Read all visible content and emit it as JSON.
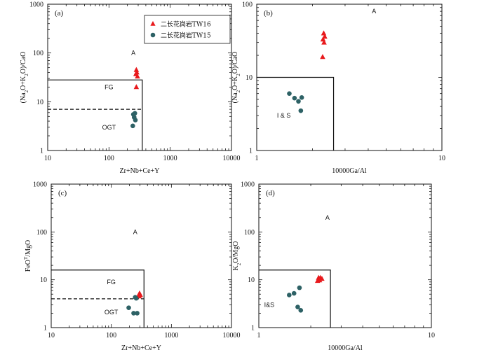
{
  "colors": {
    "tw16": "#e8191c",
    "tw15": "#2d6165",
    "axis": "#111111"
  },
  "legend": [
    {
      "name": "二长花岗岩TW16",
      "marker": "triangle"
    },
    {
      "name": "二长花岗岩TW15",
      "marker": "circle"
    }
  ],
  "chart_data": [
    {
      "type": "scatter",
      "panel": "(a)",
      "xlabel": "Zr+Nb+Ce+Y",
      "ylabel": "(Na2O+K2O)/CaO",
      "xscale": "log",
      "yscale": "log",
      "xlim": [
        10,
        10000
      ],
      "ylim": [
        1,
        1000
      ],
      "xticks": [
        10,
        100,
        1000,
        10000
      ],
      "xtick_labels": [
        "10",
        "100",
        "1000",
        "10000"
      ],
      "yticks": [
        1,
        10,
        100,
        1000
      ],
      "ytick_labels": [
        "1",
        "10",
        "100",
        "1000"
      ],
      "boundaries": [
        {
          "style": "solid",
          "points": [
            [
              10,
              28
            ],
            [
              350,
              28
            ],
            [
              350,
              1
            ]
          ]
        },
        {
          "style": "dashed",
          "points": [
            [
              10,
              7
            ],
            [
              350,
              7
            ]
          ]
        }
      ],
      "fields": [
        {
          "label": "A",
          "x": 250,
          "y": 100
        },
        {
          "label": "FG",
          "x": 100,
          "y": 20
        },
        {
          "label": "OGT",
          "x": 100,
          "y": 3
        }
      ],
      "series": [
        {
          "name": "二长花岗岩TW16",
          "marker": "triangle",
          "points": [
            [
              280,
              45
            ],
            [
              285,
              40
            ],
            [
              275,
              37
            ],
            [
              292,
              33
            ],
            [
              280,
              20
            ]
          ]
        },
        {
          "name": "二长花岗岩TW15",
          "marker": "circle",
          "points": [
            [
              250,
              5.5
            ],
            [
              265,
              5.8
            ],
            [
              258,
              4.8
            ],
            [
              270,
              4.2
            ],
            [
              245,
              3.2
            ]
          ]
        }
      ]
    },
    {
      "type": "scatter",
      "panel": "(b)",
      "xlabel": "10000Ga/Al",
      "ylabel": "(Na2O+K2O)/CaO",
      "xscale": "log",
      "yscale": "log",
      "xlim": [
        1,
        10
      ],
      "ylim": [
        1,
        100
      ],
      "xticks": [
        1,
        10
      ],
      "xtick_labels": [
        "1",
        "10"
      ],
      "yticks": [
        1,
        10,
        100
      ],
      "ytick_labels": [
        "1",
        "10",
        "100"
      ],
      "boundaries": [
        {
          "style": "solid",
          "points": [
            [
              1,
              10
            ],
            [
              2.6,
              10
            ],
            [
              2.6,
              1
            ]
          ]
        }
      ],
      "fields": [
        {
          "label": "A",
          "x": 4.3,
          "y": 80
        },
        {
          "label": "I & S",
          "x": 1.4,
          "y": 3
        }
      ],
      "series": [
        {
          "name": "二长花岗岩TW16",
          "marker": "triangle",
          "points": [
            [
              2.3,
              40
            ],
            [
              2.33,
              36
            ],
            [
              2.28,
              33
            ],
            [
              2.31,
              30
            ],
            [
              2.27,
              19
            ]
          ]
        },
        {
          "name": "二长花岗岩TW15",
          "marker": "circle",
          "points": [
            [
              1.5,
              6
            ],
            [
              1.6,
              5.2
            ],
            [
              1.68,
              4.7
            ],
            [
              1.75,
              5.3
            ],
            [
              1.73,
              3.5
            ]
          ]
        }
      ]
    },
    {
      "type": "scatter",
      "panel": "(c)",
      "xlabel": "Zr+Nb+Ce+Y",
      "ylabel": "FeOT/MgO",
      "xscale": "log",
      "yscale": "log",
      "xlim": [
        10,
        10000
      ],
      "ylim": [
        1,
        1000
      ],
      "xticks": [
        10,
        100,
        1000,
        10000
      ],
      "xtick_labels": [
        "10",
        "100",
        "1000",
        "10000"
      ],
      "yticks": [
        1,
        10,
        100,
        1000
      ],
      "ytick_labels": [
        "1",
        "10",
        "100",
        "1000"
      ],
      "boundaries": [
        {
          "style": "solid",
          "points": [
            [
              10,
              16
            ],
            [
              350,
              16
            ],
            [
              350,
              1
            ]
          ]
        },
        {
          "style": "dashed",
          "points": [
            [
              10,
              4
            ],
            [
              350,
              4
            ]
          ]
        }
      ],
      "fields": [
        {
          "label": "A",
          "x": 250,
          "y": 100
        },
        {
          "label": "FG",
          "x": 100,
          "y": 9
        },
        {
          "label": "OGT",
          "x": 100,
          "y": 2.1
        }
      ],
      "series": [
        {
          "name": "二长花岗岩TW16",
          "marker": "triangle",
          "points": [
            [
              295,
              5.2
            ],
            [
              300,
              4.9
            ],
            [
              285,
              4.7
            ],
            [
              305,
              4.8
            ],
            [
              290,
              4.5
            ]
          ]
        },
        {
          "name": "二长花岗岩TW15",
          "marker": "circle",
          "points": [
            [
              250,
              4.3
            ],
            [
              260,
              4.1
            ],
            [
              195,
              2.6
            ],
            [
              235,
              2.0
            ],
            [
              270,
              2.0
            ]
          ]
        }
      ]
    },
    {
      "type": "scatter",
      "panel": "(d)",
      "xlabel": "10000Ga/Al",
      "ylabel": "K2O/MgO",
      "xscale": "log",
      "yscale": "log",
      "xlim": [
        1,
        10
      ],
      "ylim": [
        1,
        1000
      ],
      "xticks": [
        1,
        10
      ],
      "xtick_labels": [
        "1",
        "10"
      ],
      "yticks": [
        1,
        10,
        100,
        1000
      ],
      "ytick_labels": [
        "1",
        "10",
        "100",
        "1000"
      ],
      "boundaries": [
        {
          "style": "solid",
          "points": [
            [
              1,
              16
            ],
            [
              2.6,
              16
            ],
            [
              2.6,
              1
            ]
          ]
        }
      ],
      "fields": [
        {
          "label": "A",
          "x": 2.5,
          "y": 200
        },
        {
          "label": "I&S",
          "x": 1.15,
          "y": 3
        }
      ],
      "series": [
        {
          "name": "二长花岗岩TW16",
          "marker": "triangle",
          "points": [
            [
              2.22,
              11
            ],
            [
              2.27,
              11
            ],
            [
              2.32,
              10.5
            ],
            [
              2.25,
              9.8
            ],
            [
              2.19,
              9.5
            ]
          ]
        },
        {
          "name": "二长花岗岩TW15",
          "marker": "circle",
          "points": [
            [
              1.5,
              4.8
            ],
            [
              1.6,
              5.2
            ],
            [
              1.72,
              6.8
            ],
            [
              1.68,
              2.7
            ],
            [
              1.75,
              2.3
            ]
          ]
        }
      ]
    }
  ]
}
